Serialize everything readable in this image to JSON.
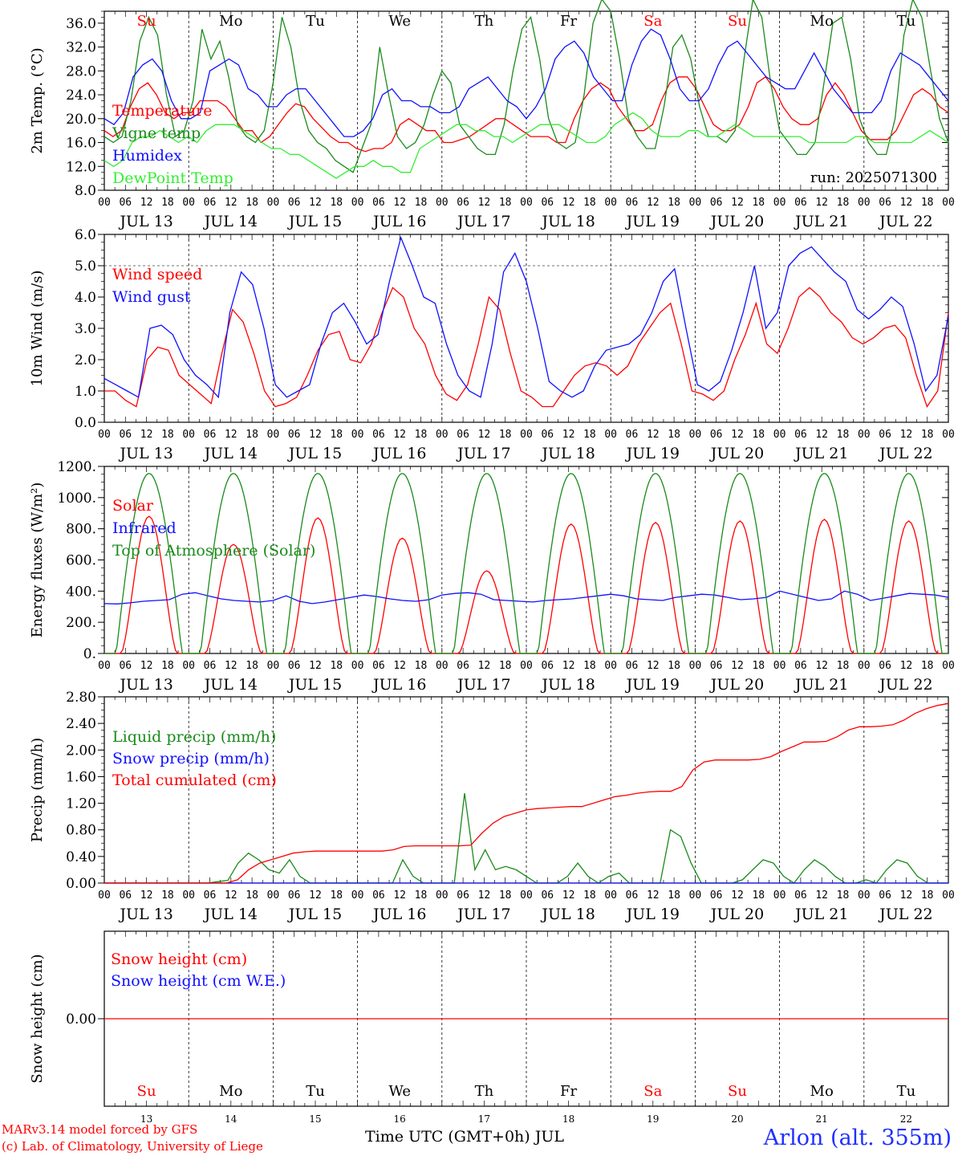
{
  "footer": {
    "credit_line1": "MARv3.14 model forced by GFS",
    "credit_line2": "(c) Lab. of Climatology, University of Liege",
    "x_title": "Time UTC (GMT+0h) JUL",
    "station": "Arlon (alt. 355m)"
  },
  "colors": {
    "red": "#ff0000",
    "blue": "#1010ff",
    "green": "#1a8a1a",
    "lightgreen": "#33ee33",
    "axis": "#000000"
  },
  "chart_data": [
    {
      "id": "temp",
      "type": "line",
      "ylabel": "2m Temp. (°C)",
      "ylim": [
        8,
        38
      ],
      "yticks": [
        "8.0",
        "12.0",
        "16.0",
        "20.0",
        "24.0",
        "28.0",
        "32.0",
        "36.0"
      ],
      "ytick_values": [
        8,
        12,
        16,
        20,
        24,
        28,
        32,
        36
      ],
      "days": [
        "JUL 13",
        "JUL 14",
        "JUL 15",
        "JUL 16",
        "JUL 17",
        "JUL 18",
        "JUL 19",
        "JUL 20",
        "JUL 21",
        "JUL 22"
      ],
      "hour_ticks": [
        "00",
        "06",
        "12",
        "18"
      ],
      "weekdays": [
        "Su",
        "Mo",
        "Tu",
        "We",
        "Th",
        "Fr",
        "Sa",
        "Su",
        "Mo",
        "Tu"
      ],
      "weekday_colors": [
        "red",
        "black",
        "black",
        "black",
        "black",
        "black",
        "red",
        "red",
        "black",
        "black"
      ],
      "annotation": "run: 2025071300",
      "x_unit": "hours since JUL 13 00 UTC (3-hourly)",
      "series": [
        {
          "name": "Temperature",
          "color": "red",
          "values": [
            18,
            17,
            18,
            22,
            25,
            26,
            24,
            21,
            20,
            21,
            21,
            23,
            23,
            23,
            22,
            20,
            18,
            18,
            16,
            17,
            19,
            21,
            22.5,
            22,
            20,
            18.5,
            17,
            16,
            16,
            15,
            14.5,
            15,
            15,
            16,
            19,
            20,
            19,
            18,
            18,
            16,
            16,
            16.5,
            17,
            18,
            19,
            20,
            20,
            19,
            18,
            17,
            17,
            17,
            16,
            16,
            20,
            23,
            25,
            26,
            25,
            22,
            20,
            18,
            18,
            19,
            23,
            26,
            27,
            27,
            25,
            22,
            19,
            18,
            18,
            19,
            22,
            26,
            27,
            25,
            22,
            20,
            19,
            19,
            20,
            24,
            26,
            24,
            21,
            18,
            16.5,
            16.5,
            16.5,
            18,
            21,
            24,
            25,
            24,
            22,
            21
          ]
        },
        {
          "name": "Vigne temp",
          "color": "green",
          "values": [
            17,
            16,
            17,
            23,
            33,
            37,
            34,
            24,
            17,
            18,
            23,
            35,
            30,
            33,
            27,
            19,
            17,
            16,
            18,
            26,
            37,
            32,
            23,
            18,
            16,
            15,
            13,
            12,
            11,
            15,
            19,
            32,
            24,
            17,
            15,
            16,
            19,
            24,
            28,
            26,
            19,
            17,
            15,
            14,
            14,
            19,
            28,
            35,
            37,
            30,
            20,
            16,
            15,
            16,
            24,
            36,
            40,
            38,
            30,
            20,
            17,
            15,
            15,
            22,
            32,
            34,
            30,
            22,
            17,
            17,
            16,
            18,
            30,
            40,
            37,
            26,
            18,
            16,
            14,
            14,
            16,
            26,
            36,
            37,
            30,
            20,
            16,
            14,
            14,
            20,
            34,
            40,
            37,
            28,
            20,
            16
          ]
        },
        {
          "name": "Humidex",
          "color": "blue",
          "values": [
            20,
            19,
            21,
            27,
            29,
            30,
            28,
            23,
            20,
            20,
            21,
            28,
            29,
            30,
            29,
            25,
            24,
            22,
            22,
            24,
            25,
            25,
            23,
            21,
            19,
            17,
            17,
            18,
            20,
            24,
            25,
            23,
            23,
            22,
            22,
            21,
            21,
            22,
            25,
            26,
            27,
            25,
            23,
            22,
            20,
            22,
            25,
            30,
            32,
            33,
            31,
            27,
            25,
            23,
            23,
            29,
            33,
            35,
            34,
            30,
            25,
            23,
            23,
            25,
            29,
            32,
            33,
            31,
            29,
            27,
            26,
            25,
            25,
            28,
            31,
            28,
            25,
            23,
            21,
            21,
            21,
            23,
            28,
            31,
            30,
            29,
            27,
            25,
            23
          ]
        },
        {
          "name": "DewPoint Temp",
          "color": "lightgreen",
          "values": [
            13,
            12,
            13,
            16,
            17,
            17,
            18,
            17,
            16,
            17,
            16,
            18,
            19,
            19,
            19,
            18,
            17,
            16,
            15,
            15,
            14,
            14,
            13,
            12,
            11,
            10,
            11,
            12,
            12,
            13,
            12,
            12,
            11,
            11,
            15,
            16,
            17,
            18,
            19,
            19,
            18,
            18,
            17,
            17,
            16,
            17,
            18,
            19,
            19,
            19,
            18,
            17,
            16,
            16,
            17,
            19,
            20,
            21,
            20,
            18,
            17,
            17,
            17,
            18,
            18,
            17,
            17,
            18,
            19,
            18,
            17,
            17,
            17,
            17,
            17,
            17,
            16,
            16,
            16,
            16,
            16,
            17,
            17,
            16,
            16,
            16,
            16,
            16,
            17,
            18,
            17,
            16
          ]
        }
      ]
    },
    {
      "id": "wind",
      "type": "line",
      "ylabel": "10m Wind (m/s)",
      "ylim": [
        0,
        6
      ],
      "yticks": [
        "0.0",
        "1.0",
        "2.0",
        "3.0",
        "4.0",
        "5.0",
        "6.0"
      ],
      "ytick_values": [
        0,
        1,
        2,
        3,
        4,
        5,
        6
      ],
      "ref_line": 5,
      "series": [
        {
          "name": "Wind speed",
          "color": "red",
          "values": [
            1,
            1,
            0.7,
            0.5,
            2,
            2.4,
            2.3,
            1.5,
            1.2,
            0.9,
            0.6,
            2.2,
            3.6,
            3.2,
            2.2,
            1,
            0.5,
            0.6,
            0.8,
            1.5,
            2.3,
            2.8,
            2.9,
            2,
            1.9,
            2.5,
            3.5,
            4.3,
            4,
            3,
            2.5,
            1.5,
            0.9,
            0.7,
            1.2,
            2.5,
            4,
            3.6,
            2.2,
            1,
            0.8,
            0.5,
            0.5,
            1,
            1.5,
            1.8,
            1.9,
            1.8,
            1.5,
            1.8,
            2.5,
            3,
            3.5,
            3.8,
            2.5,
            1,
            0.9,
            0.7,
            1,
            2,
            2.8,
            3.8,
            2.5,
            2.2,
            3,
            4,
            4.3,
            4,
            3.5,
            3.2,
            2.7,
            2.5,
            2.7,
            3,
            3.1,
            2.7,
            1.5,
            0.5,
            1,
            3.5
          ]
        },
        {
          "name": "Wind gust",
          "color": "blue",
          "values": [
            1.4,
            1.2,
            1,
            0.8,
            3,
            3.1,
            2.8,
            2,
            1.5,
            1.2,
            0.8,
            3.5,
            4.8,
            4.4,
            3,
            1.2,
            0.8,
            1,
            1.2,
            2.5,
            3.5,
            3.8,
            3.2,
            2.5,
            2.8,
            4.5,
            5.9,
            5,
            4,
            3.8,
            2.5,
            1.5,
            1,
            0.8,
            2.5,
            4.8,
            5.4,
            4.5,
            3,
            1.3,
            1,
            0.8,
            1,
            1.8,
            2.3,
            2.4,
            2.5,
            2.8,
            3.5,
            4.5,
            4.9,
            3,
            1.2,
            1,
            1.3,
            2.3,
            3.5,
            5,
            3,
            3.5,
            5,
            5.4,
            5.6,
            5.2,
            4.8,
            4.5,
            3.6,
            3.3,
            3.6,
            4,
            3.7,
            2.5,
            1,
            1.5,
            3.4
          ]
        }
      ]
    },
    {
      "id": "energy",
      "type": "line",
      "ylabel": "Energy fluxes (W/m²)",
      "ylim": [
        0,
        1200
      ],
      "yticks": [
        "0.",
        "200.",
        "400.",
        "600.",
        "800.",
        "1000.",
        "1200."
      ],
      "ytick_values": [
        0,
        200,
        400,
        600,
        800,
        1000,
        1200
      ],
      "series": [
        {
          "name": "Solar",
          "color": "red",
          "peaks": [
            880,
            700,
            870,
            740,
            530,
            830,
            840,
            850,
            860,
            850
          ]
        },
        {
          "name": "Infrared",
          "color": "blue",
          "values": [
            320,
            318,
            325,
            335,
            340,
            345,
            380,
            390,
            370,
            350,
            340,
            335,
            330,
            340,
            370,
            335,
            320,
            330,
            345,
            360,
            375,
            365,
            350,
            340,
            335,
            345,
            375,
            385,
            390,
            380,
            345,
            340,
            335,
            330,
            340,
            345,
            350,
            360,
            370,
            380,
            370,
            350,
            345,
            340,
            360,
            370,
            380,
            375,
            360,
            345,
            350,
            360,
            400,
            380,
            360,
            340,
            350,
            400,
            380,
            340,
            355,
            370,
            385,
            380,
            375,
            360
          ]
        },
        {
          "name": "Top of Atmosphere (Solar)",
          "color": "green",
          "peak": 1155
        }
      ]
    },
    {
      "id": "precip",
      "type": "line",
      "ylabel": "Precip (mm/h)",
      "ylim": [
        0,
        2.8
      ],
      "yticks": [
        "0.00",
        "0.40",
        "0.80",
        "1.20",
        "1.60",
        "2.00",
        "2.40",
        "2.80"
      ],
      "ytick_values": [
        0,
        0.4,
        0.8,
        1.2,
        1.6,
        2,
        2.4,
        2.8
      ],
      "series": [
        {
          "name": "Liquid precip (mm/h)",
          "color": "green",
          "values": [
            0,
            0,
            0,
            0,
            0,
            0,
            0,
            0,
            0,
            0,
            0,
            0.02,
            0.04,
            0.3,
            0.45,
            0.35,
            0.2,
            0.15,
            0.35,
            0.1,
            0,
            0,
            0,
            0,
            0,
            0,
            0,
            0,
            0,
            0.35,
            0.1,
            0,
            0,
            0,
            0,
            1.35,
            0.2,
            0.5,
            0.2,
            0.25,
            0.2,
            0.1,
            0,
            0,
            0,
            0.1,
            0.3,
            0.1,
            0,
            0.1,
            0.15,
            0,
            0,
            0,
            0,
            0.8,
            0.7,
            0.3,
            0,
            0,
            0,
            0,
            0.05,
            0.2,
            0.35,
            0.3,
            0.1,
            0,
            0.2,
            0.35,
            0.25,
            0.1,
            0,
            0,
            0.05,
            0,
            0.2,
            0.35,
            0.3,
            0.1,
            0,
            0,
            0
          ]
        },
        {
          "name": "Snow precip (mm/h)",
          "color": "blue",
          "values": [
            0,
            0
          ]
        },
        {
          "name": "Total cumulated (cm)",
          "color": "red",
          "values": [
            0,
            0,
            0,
            0,
            0,
            0,
            0,
            0,
            0,
            0,
            0,
            0,
            0.05,
            0.2,
            0.3,
            0.35,
            0.4,
            0.45,
            0.47,
            0.48,
            0.48,
            0.48,
            0.48,
            0.48,
            0.48,
            0.48,
            0.5,
            0.55,
            0.56,
            0.56,
            0.56,
            0.56,
            0.56,
            0.57,
            0.75,
            0.9,
            1,
            1.05,
            1.1,
            1.12,
            1.13,
            1.14,
            1.15,
            1.15,
            1.2,
            1.25,
            1.3,
            1.32,
            1.35,
            1.37,
            1.38,
            1.38,
            1.45,
            1.7,
            1.82,
            1.85,
            1.85,
            1.85,
            1.85,
            1.86,
            1.9,
            1.98,
            2.05,
            2.12,
            2.12,
            2.13,
            2.2,
            2.3,
            2.35,
            2.35,
            2.36,
            2.38,
            2.45,
            2.55,
            2.62,
            2.67,
            2.7
          ]
        }
      ]
    },
    {
      "id": "snow",
      "type": "line",
      "ylabel": "Snow height (cm)",
      "yticks": [
        "0.00"
      ],
      "ytick_values": [
        0
      ],
      "day_numbers": [
        "13",
        "14",
        "15",
        "16",
        "17",
        "18",
        "19",
        "20",
        "21",
        "22"
      ],
      "series": [
        {
          "name": "Snow height (cm)",
          "color": "red",
          "values": [
            0,
            0
          ]
        },
        {
          "name": "Snow height (cm W.E.)",
          "color": "blue",
          "values": []
        }
      ]
    }
  ]
}
